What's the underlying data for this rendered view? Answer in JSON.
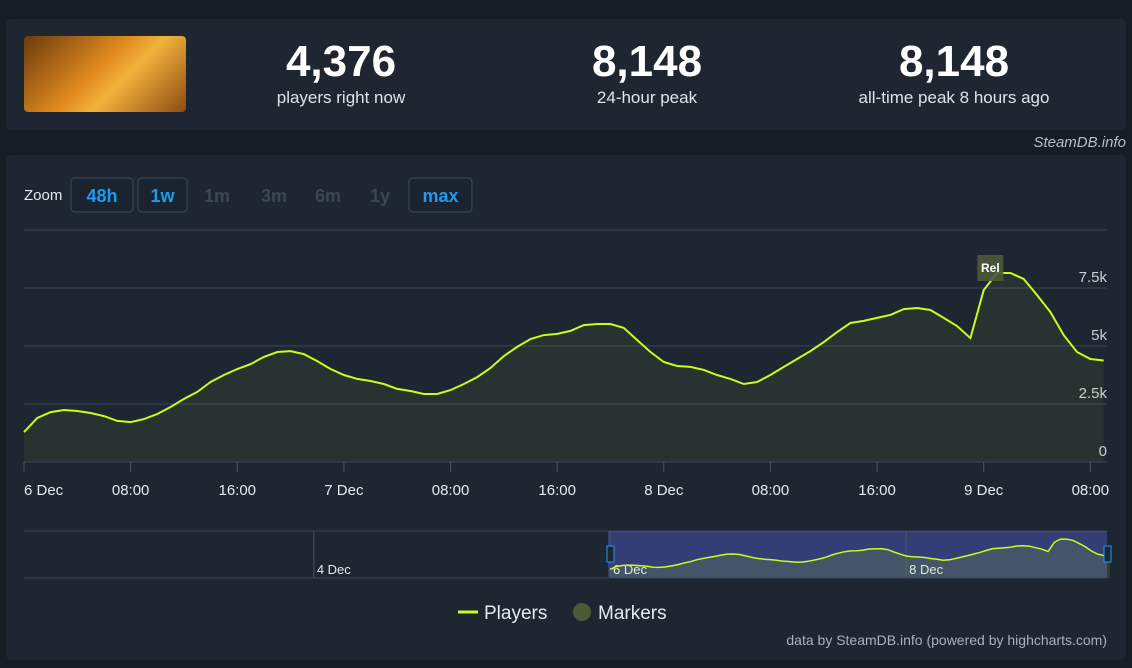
{
  "header": {
    "stats": [
      {
        "value": "4,376",
        "label": "players right now"
      },
      {
        "value": "8,148",
        "label": "24-hour peak"
      },
      {
        "value": "8,148",
        "label": "all-time peak 8 hours ago"
      }
    ],
    "source": "SteamDB.info"
  },
  "zoom": {
    "label": "Zoom",
    "options": [
      "48h",
      "1w",
      "1m",
      "3m",
      "6m",
      "1y",
      "max"
    ]
  },
  "chart_data": {
    "type": "line",
    "credits": "data by SteamDB.info (powered by highcharts.com)",
    "x": [
      0,
      1,
      2,
      3,
      4,
      5,
      6,
      7,
      8,
      9,
      10,
      11,
      12,
      13,
      14,
      15,
      16,
      17,
      18,
      19,
      20,
      21,
      22,
      23,
      24,
      25,
      26,
      27,
      28,
      29,
      30,
      31,
      32,
      33,
      34,
      35,
      36,
      37,
      38,
      39,
      40,
      41,
      42,
      43,
      44,
      45,
      46,
      47,
      48,
      49,
      50,
      51,
      52,
      53,
      54,
      55,
      56,
      57,
      58,
      59,
      60,
      61,
      62,
      63,
      64,
      65,
      66,
      67,
      68,
      69,
      70,
      71,
      72,
      73,
      74,
      75,
      76,
      77,
      78,
      79,
      80,
      81
    ],
    "series": [
      {
        "name": "Players",
        "color": "#c6ff1a",
        "values": [
          1290,
          1900,
          2150,
          2240,
          2200,
          2110,
          1980,
          1770,
          1720,
          1850,
          2070,
          2370,
          2720,
          3020,
          3450,
          3750,
          4010,
          4220,
          4530,
          4740,
          4780,
          4650,
          4350,
          4010,
          3750,
          3580,
          3490,
          3360,
          3150,
          3060,
          2930,
          2930,
          3100,
          3360,
          3660,
          4050,
          4570,
          4960,
          5300,
          5470,
          5520,
          5650,
          5900,
          5950,
          5950,
          5780,
          5260,
          4740,
          4310,
          4140,
          4100,
          3970,
          3750,
          3580,
          3360,
          3450,
          3750,
          4100,
          4440,
          4780,
          5170,
          5600,
          5990,
          6080,
          6210,
          6340,
          6590,
          6640,
          6550,
          6210,
          5860,
          5340,
          7410,
          8148,
          8148,
          7890,
          7200,
          6460,
          5470,
          4740,
          4440,
          4376
        ]
      }
    ],
    "markers": {
      "name": "Markers",
      "color": "#4b5a35",
      "items": [
        {
          "x": 72.5,
          "label": "Rel"
        }
      ]
    },
    "xlim": [
      0,
      81.25
    ],
    "xticks": [
      {
        "value": 0,
        "label": "6 Dec"
      },
      {
        "value": 8,
        "label": "08:00"
      },
      {
        "value": 16,
        "label": "16:00"
      },
      {
        "value": 24,
        "label": "7 Dec"
      },
      {
        "value": 32,
        "label": "08:00"
      },
      {
        "value": 40,
        "label": "16:00"
      },
      {
        "value": 48,
        "label": "8 Dec"
      },
      {
        "value": 56,
        "label": "08:00"
      },
      {
        "value": 64,
        "label": "16:00"
      },
      {
        "value": 72,
        "label": "9 Dec"
      },
      {
        "value": 80,
        "label": "08:00"
      }
    ],
    "ylim": [
      0,
      10000
    ],
    "yticks": [
      0,
      {
        "value": 2500,
        "label": "2.5k"
      },
      {
        "value": 5000,
        "label": "5k"
      },
      {
        "value": 7500,
        "label": "7.5k"
      }
    ],
    "grid": true,
    "navigator_ticks": [
      {
        "value": -48,
        "label": "4 Dec"
      },
      {
        "value": 0,
        "label": "6 Dec"
      },
      {
        "value": 48,
        "label": "8 Dec"
      }
    ]
  }
}
